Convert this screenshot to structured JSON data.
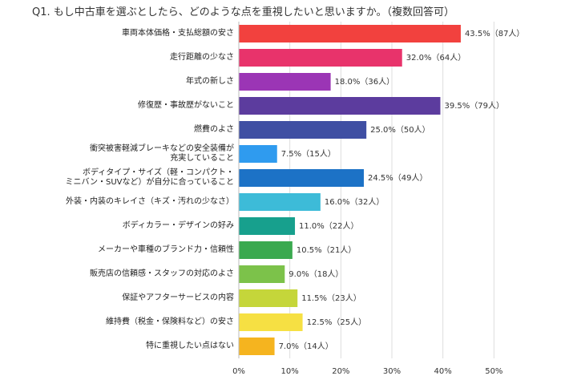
{
  "chart_data": {
    "type": "bar",
    "orientation": "horizontal",
    "title": "Q1. もし中古車を選ぶとしたら、どのような点を重視したいと思いますか。（複数回答可）",
    "categories": [
      "車両本体価格・支払総額の安さ",
      "走行距離の少なさ",
      "年式の新しさ",
      "修復歴・事故歴がないこと",
      "燃費のよさ",
      "衝突被害軽減ブレーキなどの安全装備が\n充実していること",
      "ボディタイプ・サイズ（軽・コンパクト・\nミニバン・SUVなど）が自分に合っていること",
      "外装・内装のキレイさ（キズ・汚れの少なさ）",
      "ボディカラー・デザインの好み",
      "メーカーや車種のブランド力・信頼性",
      "販売店の信頼感・スタッフの対応のよさ",
      "保証やアフターサービスの内容",
      "維持費（税金・保険料など）の安さ",
      "特に重視したい点はない"
    ],
    "values": [
      43.5,
      32.0,
      18.0,
      39.5,
      25.0,
      7.5,
      24.5,
      16.0,
      11.0,
      10.5,
      9.0,
      11.5,
      12.5,
      7.0
    ],
    "value_labels": [
      "43.5%（87人）",
      "32.0%（64人）",
      "18.0%（36人）",
      "39.5%（79人）",
      "25.0%（50人）",
      "7.5%（15人）",
      "24.5%（49人）",
      "16.0%（32人）",
      "11.0%（22人）",
      "10.5%（21人）",
      "9.0%（18人）",
      "11.5%（23人）",
      "12.5%（25人）",
      "7.0%（14人）"
    ],
    "colors": [
      "#f2413e",
      "#e8336b",
      "#9b35b5",
      "#5c3c9e",
      "#3f4fa3",
      "#2f9bef",
      "#1c72c6",
      "#3dbbd8",
      "#17a08d",
      "#3aa94f",
      "#7cc24a",
      "#c5d63a",
      "#f6e043",
      "#f5b41f"
    ],
    "xlim": [
      0,
      60
    ],
    "xticks": [
      {
        "value": 0,
        "label": "0%"
      },
      {
        "value": 10,
        "label": "10%"
      },
      {
        "value": 20,
        "label": "20%"
      },
      {
        "value": 30,
        "label": "30%"
      },
      {
        "value": 40,
        "label": "40%"
      },
      {
        "value": 50,
        "label": "50%"
      }
    ],
    "grid": true
  }
}
